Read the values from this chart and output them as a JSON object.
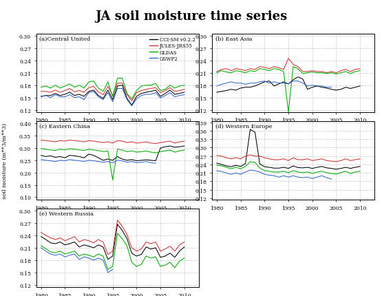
{
  "title": "JA soil moisture time series",
  "ylabel": "soil moisture (m**3/m**3)",
  "years": [
    1979,
    1980,
    1981,
    1982,
    1983,
    1984,
    1985,
    1986,
    1987,
    1988,
    1989,
    1990,
    1991,
    1992,
    1993,
    1994,
    1995,
    1996,
    1997,
    1998,
    1999,
    2000,
    2001,
    2002,
    2003,
    2004,
    2005,
    2006,
    2007,
    2008,
    2009,
    2010,
    2011,
    2012
  ],
  "legend_labels": [
    "CCI-SM v0.2.2",
    "JULES-JRS55",
    "GLDAS",
    "GSWP2"
  ],
  "colors": [
    "black",
    "#cc3333",
    "#00aa00",
    "#3366cc"
  ],
  "panels": [
    {
      "label": "(a)Central United",
      "ylim": [
        0.115,
        0.305
      ],
      "yticks": [
        0.12,
        0.15,
        0.18,
        0.21,
        0.24,
        0.27,
        0.3
      ],
      "CCI": [
        null,
        0.153,
        0.155,
        0.155,
        0.16,
        0.155,
        0.158,
        0.163,
        0.155,
        0.158,
        0.153,
        0.165,
        0.168,
        0.155,
        0.148,
        0.168,
        0.145,
        0.178,
        0.18,
        0.148,
        0.132,
        0.153,
        0.16,
        0.163,
        0.165,
        0.168,
        0.153,
        0.16,
        0.168,
        0.158,
        0.16,
        0.163,
        null,
        null
      ],
      "JULES": [
        null,
        0.165,
        0.165,
        0.163,
        0.168,
        0.163,
        0.167,
        0.172,
        0.164,
        0.167,
        0.163,
        0.174,
        0.177,
        0.164,
        0.157,
        0.177,
        0.155,
        0.185,
        0.185,
        0.157,
        0.142,
        0.162,
        0.167,
        0.17,
        0.172,
        0.174,
        0.162,
        0.167,
        0.174,
        0.165,
        0.167,
        0.17,
        null,
        null
      ],
      "GLDAS": [
        null,
        0.175,
        0.178,
        0.173,
        0.18,
        0.173,
        0.178,
        0.183,
        0.175,
        0.18,
        0.173,
        0.188,
        0.19,
        0.173,
        0.165,
        0.188,
        0.152,
        0.197,
        0.197,
        0.16,
        0.147,
        0.167,
        0.178,
        0.18,
        0.18,
        0.184,
        0.167,
        0.17,
        0.18,
        0.173,
        0.178,
        0.18,
        null,
        null
      ],
      "GSWP2": [
        null,
        0.152,
        0.155,
        0.15,
        0.157,
        0.152,
        0.152,
        0.157,
        0.15,
        0.152,
        0.145,
        0.162,
        0.165,
        0.152,
        0.145,
        0.162,
        0.14,
        0.172,
        0.172,
        0.145,
        0.13,
        0.147,
        0.155,
        0.158,
        0.158,
        0.162,
        0.149,
        0.155,
        0.162,
        0.152,
        0.155,
        0.157,
        null,
        null
      ],
      "show_legend": true
    },
    {
      "label": "(b) East Asia",
      "ylim": [
        0.115,
        0.305
      ],
      "yticks": [
        0.12,
        0.15,
        0.18,
        0.21,
        0.24,
        0.27,
        0.3
      ],
      "CCI": [
        null,
        0.163,
        0.165,
        0.167,
        0.17,
        0.168,
        0.173,
        0.175,
        0.175,
        0.178,
        0.183,
        0.188,
        0.19,
        0.178,
        0.183,
        0.188,
        0.183,
        0.193,
        0.2,
        0.195,
        0.17,
        0.175,
        0.178,
        0.175,
        0.173,
        0.17,
        0.168,
        0.17,
        0.175,
        0.172,
        0.175,
        0.178,
        null,
        null
      ],
      "JULES": [
        null,
        0.213,
        0.218,
        0.22,
        0.215,
        0.22,
        0.218,
        0.215,
        0.22,
        0.218,
        0.225,
        0.223,
        0.22,
        0.225,
        0.222,
        0.218,
        0.245,
        0.23,
        0.225,
        0.213,
        0.213,
        0.215,
        0.213,
        0.213,
        0.21,
        0.213,
        0.21,
        0.215,
        0.218,
        0.213,
        0.218,
        0.22,
        null,
        null
      ],
      "GLDAS": [
        null,
        0.21,
        0.215,
        0.212,
        0.21,
        0.215,
        0.213,
        0.21,
        0.215,
        0.213,
        0.22,
        0.218,
        0.215,
        0.22,
        0.218,
        0.213,
        0.115,
        0.225,
        0.22,
        0.208,
        0.21,
        0.212,
        0.21,
        0.21,
        0.208,
        0.21,
        0.207,
        0.21,
        0.213,
        0.208,
        0.213,
        0.215,
        null,
        null
      ],
      "GSWP2": [
        null,
        0.178,
        0.182,
        0.185,
        0.188,
        0.185,
        0.185,
        0.182,
        0.185,
        0.185,
        0.188,
        0.19,
        0.185,
        0.188,
        0.185,
        0.185,
        0.183,
        0.19,
        0.19,
        0.185,
        0.178,
        0.18,
        0.178,
        0.178,
        0.175,
        0.175,
        null,
        null,
        null,
        null,
        null,
        null,
        null,
        null
      ],
      "show_legend": false
    },
    {
      "label": "(c) Eastern China",
      "ylim": [
        0.09,
        0.41
      ],
      "yticks": [
        0.1,
        0.15,
        0.2,
        0.25,
        0.3,
        0.35,
        0.4
      ],
      "CCI": [
        null,
        0.27,
        0.265,
        0.268,
        0.262,
        0.265,
        0.26,
        0.27,
        0.268,
        0.265,
        0.26,
        0.275,
        0.27,
        0.26,
        0.25,
        0.255,
        0.25,
        0.265,
        0.255,
        0.25,
        0.253,
        0.248,
        0.25,
        0.252,
        0.25,
        0.248,
        0.3,
        0.305,
        0.308,
        0.303,
        0.305,
        0.308,
        null,
        null
      ],
      "JULES": [
        null,
        0.332,
        0.33,
        0.328,
        0.325,
        0.33,
        0.328,
        0.332,
        0.33,
        0.328,
        0.325,
        0.33,
        0.328,
        0.325,
        0.322,
        0.325,
        0.32,
        0.33,
        0.328,
        0.322,
        0.325,
        0.32,
        0.322,
        0.325,
        0.32,
        0.318,
        0.322,
        0.325,
        0.328,
        0.32,
        0.325,
        0.328,
        null,
        null
      ],
      "GLDAS": [
        null,
        0.297,
        0.295,
        0.292,
        0.29,
        0.295,
        0.292,
        0.297,
        0.295,
        0.292,
        0.29,
        0.295,
        0.292,
        0.29,
        0.285,
        0.288,
        0.17,
        0.295,
        0.292,
        0.285,
        0.288,
        0.283,
        0.285,
        0.288,
        0.283,
        0.28,
        0.285,
        0.288,
        0.292,
        0.283,
        0.288,
        0.292,
        null,
        null
      ],
      "GSWP2": [
        null,
        0.253,
        0.25,
        0.248,
        0.245,
        0.25,
        0.248,
        0.253,
        0.25,
        0.248,
        0.245,
        0.25,
        0.248,
        0.245,
        0.242,
        0.245,
        0.24,
        0.25,
        0.248,
        0.242,
        0.245,
        0.24,
        0.242,
        0.245,
        0.24,
        0.238,
        null,
        null,
        null,
        null,
        null,
        null,
        null,
        null
      ],
      "show_legend": false
    },
    {
      "label": "(d) Western Europe",
      "ylim": [
        0.115,
        0.395
      ],
      "yticks": [
        0.12,
        0.15,
        0.18,
        0.21,
        0.24,
        0.27,
        0.3,
        0.33,
        0.36,
        0.39
      ],
      "CCI": [
        null,
        0.245,
        0.24,
        0.235,
        0.232,
        0.237,
        0.233,
        0.243,
        0.365,
        0.355,
        0.242,
        0.232,
        0.23,
        0.227,
        0.227,
        0.23,
        0.226,
        0.235,
        0.229,
        0.228,
        0.23,
        0.226,
        0.23,
        0.233,
        0.228,
        0.226,
        0.223,
        0.226,
        0.23,
        0.226,
        0.23,
        0.233,
        null,
        null
      ],
      "JULES": [
        null,
        0.272,
        0.27,
        0.264,
        0.26,
        0.264,
        0.26,
        0.27,
        0.274,
        0.27,
        0.27,
        0.264,
        0.26,
        0.257,
        0.257,
        0.26,
        0.254,
        0.264,
        0.257,
        0.257,
        0.26,
        0.254,
        0.257,
        0.26,
        0.254,
        0.252,
        0.25,
        0.254,
        0.26,
        0.254,
        0.257,
        0.26,
        null,
        null
      ],
      "GLDAS": [
        null,
        0.238,
        0.235,
        0.23,
        0.225,
        0.23,
        0.225,
        0.233,
        0.25,
        0.247,
        0.228,
        0.218,
        0.216,
        0.213,
        0.213,
        0.216,
        0.211,
        0.218,
        0.213,
        0.211,
        0.213,
        0.208,
        0.213,
        0.216,
        0.211,
        0.208,
        0.206,
        0.211,
        0.216,
        0.208,
        0.213,
        0.216,
        null,
        null
      ],
      "GSWP2": [
        null,
        0.218,
        0.215,
        0.21,
        0.205,
        0.21,
        0.205,
        0.213,
        0.22,
        0.218,
        0.213,
        0.205,
        0.202,
        0.2,
        0.195,
        0.2,
        0.195,
        0.2,
        0.195,
        0.193,
        0.195,
        0.19,
        0.195,
        0.2,
        0.193,
        0.188,
        null,
        null,
        null,
        null,
        null,
        null,
        null,
        null
      ],
      "show_legend": false
    },
    {
      "label": "(e) Western Russia",
      "ylim": [
        0.115,
        0.305
      ],
      "yticks": [
        0.12,
        0.15,
        0.18,
        0.21,
        0.24,
        0.27,
        0.3
      ],
      "CCI": [
        null,
        0.237,
        0.23,
        0.222,
        0.22,
        0.224,
        0.217,
        0.22,
        0.224,
        0.212,
        0.217,
        0.214,
        0.21,
        0.217,
        0.212,
        0.182,
        0.19,
        0.267,
        0.252,
        0.232,
        0.197,
        0.19,
        0.194,
        0.212,
        0.207,
        0.21,
        0.187,
        0.19,
        0.197,
        0.187,
        0.202,
        0.212,
        null,
        null
      ],
      "JULES": [
        null,
        0.247,
        0.24,
        0.234,
        0.23,
        0.234,
        0.227,
        0.232,
        0.237,
        0.224,
        0.23,
        0.227,
        0.222,
        0.23,
        0.224,
        0.194,
        0.202,
        0.277,
        0.262,
        0.242,
        0.21,
        0.202,
        0.207,
        0.224,
        0.22,
        0.224,
        0.202,
        0.207,
        0.214,
        0.202,
        0.217,
        0.224,
        null,
        null
      ],
      "GLDAS": [
        null,
        0.215,
        0.208,
        0.2,
        0.198,
        0.202,
        0.195,
        0.198,
        0.202,
        0.19,
        0.195,
        0.192,
        0.188,
        0.195,
        0.19,
        0.158,
        0.165,
        0.245,
        0.232,
        0.215,
        0.175,
        0.165,
        0.17,
        0.19,
        0.185,
        0.188,
        0.165,
        0.168,
        0.175,
        0.162,
        0.178,
        0.185,
        null,
        null
      ],
      "GSWP2": [
        null,
        0.21,
        0.202,
        0.195,
        0.192,
        0.195,
        0.188,
        0.192,
        0.195,
        0.182,
        0.188,
        0.185,
        0.18,
        0.185,
        0.18,
        0.15,
        0.158,
        null,
        null,
        null,
        null,
        null,
        null,
        null,
        null,
        null,
        null,
        null,
        null,
        null,
        null,
        null,
        null,
        null
      ],
      "show_legend": false
    }
  ],
  "xticks": [
    1980,
    1985,
    1990,
    1995,
    2000,
    2005,
    2010
  ],
  "xlim": [
    1979,
    2013
  ]
}
